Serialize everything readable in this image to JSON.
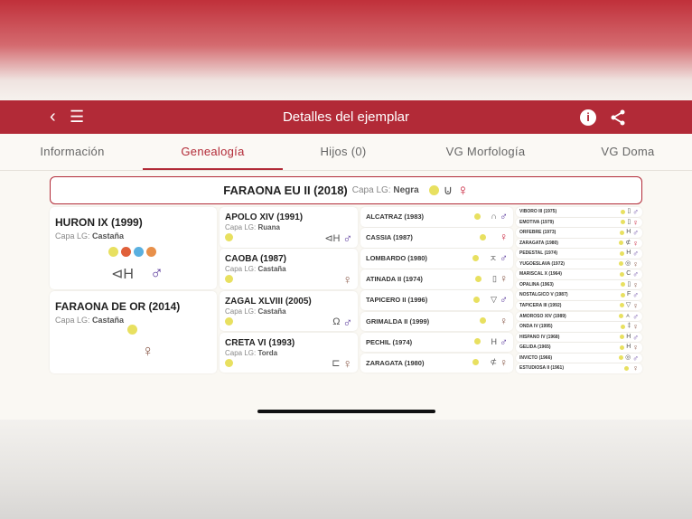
{
  "header": {
    "title": "Detalles del ejemplar",
    "back_icon": "chevron-left-icon",
    "menu_icon": "hamburger-icon",
    "info_icon": "info-icon",
    "share_icon": "share-icon"
  },
  "colors": {
    "brand": "#b22a37",
    "male": "#5b3a9c",
    "female": "#8a5a4a",
    "medal_yellow": "#e8e060"
  },
  "tabs": [
    {
      "label": "Información"
    },
    {
      "label": "Genealogía",
      "active": true
    },
    {
      "label": "Hijos (0)"
    },
    {
      "label": "VG Morfología"
    },
    {
      "label": "VG Doma"
    }
  ],
  "capa_label": "Capa LG:",
  "subject": {
    "name": "FARAONA EU II (2018)",
    "capa": "Negra",
    "sex": "female"
  },
  "gen1": [
    {
      "name": "HURON IX (1999)",
      "capa": "Castaña",
      "sex": "male",
      "brand": "⊲H"
    },
    {
      "name": "FARAONA DE OR (2014)",
      "capa": "Castaña",
      "sex": "female",
      "brand": ""
    }
  ],
  "gen2": [
    {
      "name": "APOLO XIV (1991)",
      "capa": "Ruana",
      "sex": "male",
      "brand": "⊲H"
    },
    {
      "name": "CAOBA (1987)",
      "capa": "Castaña",
      "sex": "female",
      "brand": ""
    },
    {
      "name": "ZAGAL XLVIII (2005)",
      "capa": "Castaña",
      "sex": "male",
      "brand": "Ω"
    },
    {
      "name": "CRETA VI (1993)",
      "capa": "Torda",
      "sex": "female",
      "brand": "⊏"
    }
  ],
  "gen3": [
    {
      "name": "ALCATRAZ (1983)",
      "sex": "male",
      "brand": "∩"
    },
    {
      "name": "CASSIA (1987)",
      "sex": "femalered",
      "brand": ""
    },
    {
      "name": "LOMBARDO (1980)",
      "sex": "male",
      "brand": "ㅈ"
    },
    {
      "name": "ATINADA II (1974)",
      "sex": "female",
      "brand": "▯"
    },
    {
      "name": "TAPICERO II (1996)",
      "sex": "male",
      "brand": "▽"
    },
    {
      "name": "GRIMALDA II (1999)",
      "sex": "female",
      "brand": ""
    },
    {
      "name": "PECHIL (1974)",
      "sex": "male",
      "brand": "H"
    },
    {
      "name": "ZARAGATA (1980)",
      "sex": "female",
      "brand": "⊄"
    }
  ],
  "gen4": [
    {
      "name": "VIBORO III (1975)",
      "sex": "male",
      "brand": "▯"
    },
    {
      "name": "EMOTIVA (1979)",
      "sex": "femalered",
      "brand": "▯"
    },
    {
      "name": "ORFEBRE (1973)",
      "sex": "male",
      "brand": "H"
    },
    {
      "name": "ZARAGATA (1980)",
      "sex": "femalered",
      "brand": "⊄"
    },
    {
      "name": "PEDESTAL (1974)",
      "sex": "male",
      "brand": "H"
    },
    {
      "name": "YUGOESLAVA (1972)",
      "sex": "female",
      "brand": "◎"
    },
    {
      "name": "MARISCAL X (1964)",
      "sex": "male",
      "brand": "C"
    },
    {
      "name": "OPALINA (1963)",
      "sex": "female",
      "brand": "▯"
    },
    {
      "name": "NOSTALGICO V (1987)",
      "sex": "male",
      "brand": "F"
    },
    {
      "name": "TAPICERA III (1992)",
      "sex": "female",
      "brand": "▽"
    },
    {
      "name": "AMOROSO XIV (1989)",
      "sex": "male",
      "brand": "ㅅ"
    },
    {
      "name": "ONDA IV (1995)",
      "sex": "female",
      "brand": "‡"
    },
    {
      "name": "HISPANO IV (1968)",
      "sex": "male",
      "brand": "H"
    },
    {
      "name": "GELIDA (1965)",
      "sex": "female",
      "brand": "H"
    },
    {
      "name": "INVICTO (1966)",
      "sex": "male",
      "brand": "◎"
    },
    {
      "name": "ESTUDIOSA II (1961)",
      "sex": "female",
      "brand": ""
    }
  ]
}
